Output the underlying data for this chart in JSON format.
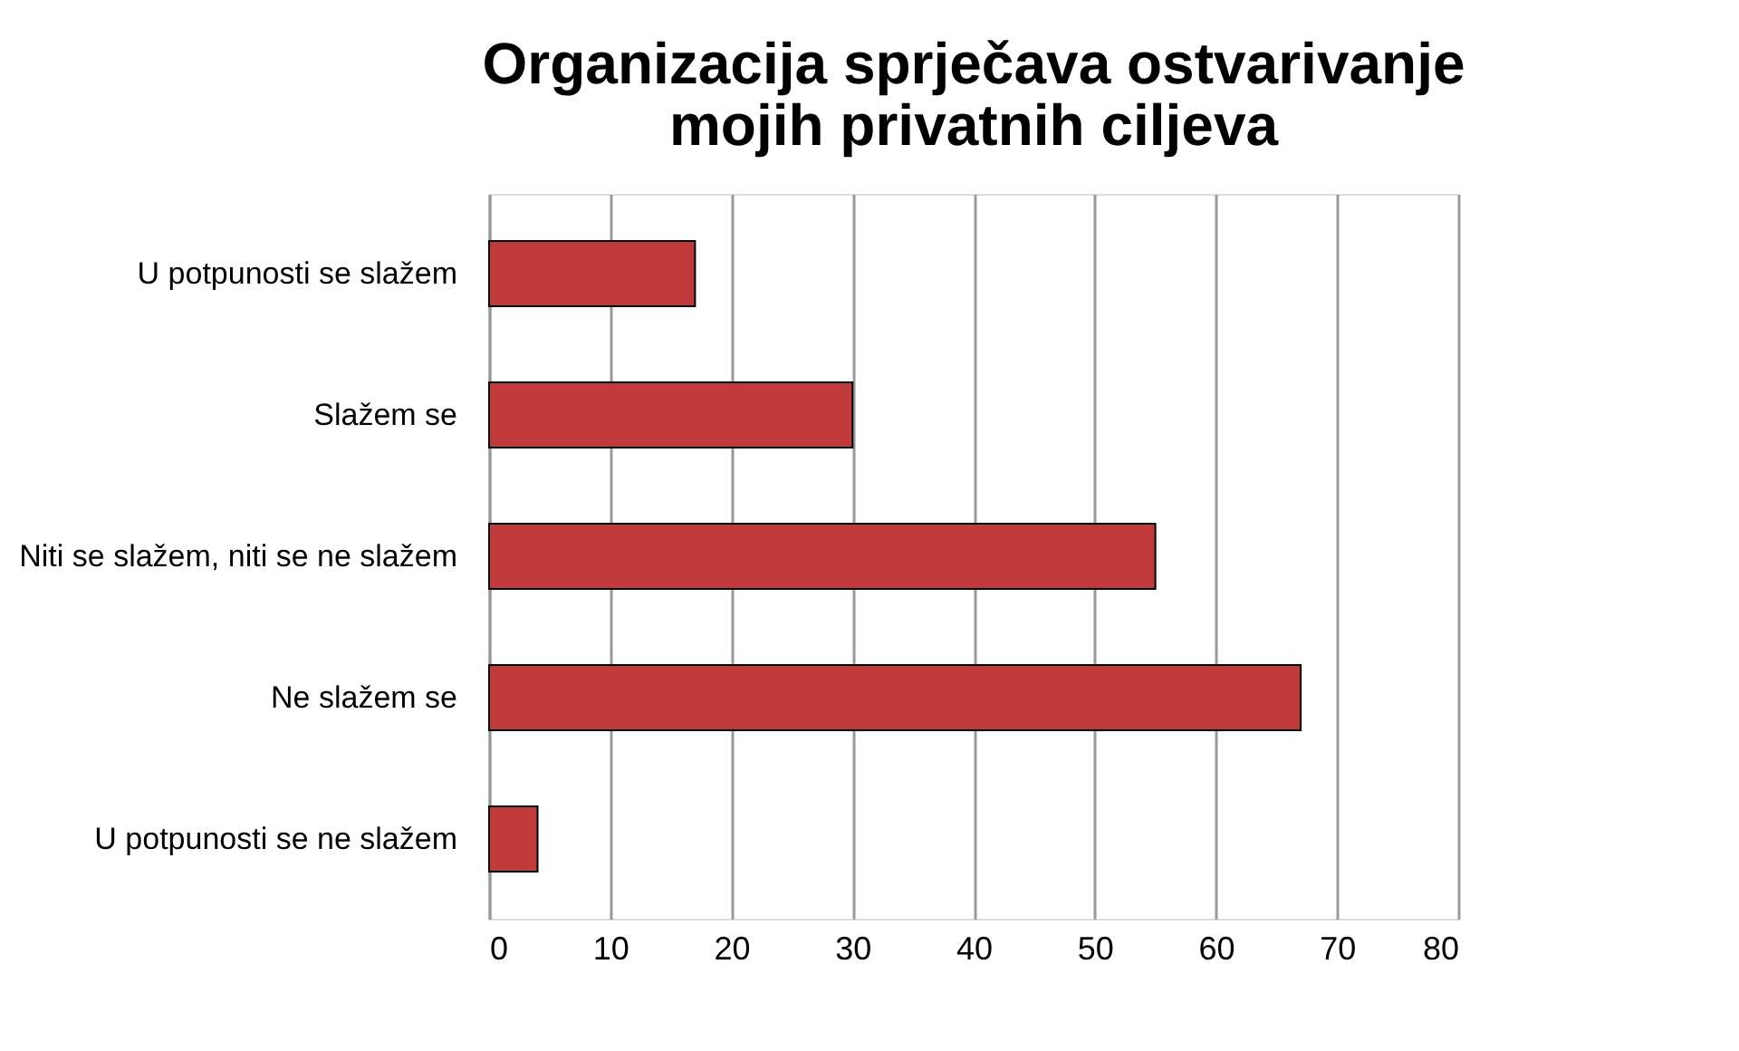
{
  "chart_data": {
    "type": "bar",
    "orientation": "horizontal",
    "title": [
      "Organizacija sprječava ostvarivanje",
      "mojih privatnih ciljeva"
    ],
    "categories": [
      "U potpunosti se slažem",
      "Slažem se",
      "Niti se slažem, niti se ne slažem",
      "Ne slažem se",
      "U potpunosti se ne slažem"
    ],
    "values": [
      17,
      30,
      55,
      67,
      4
    ],
    "color": "#c0393b",
    "xlim": [
      0,
      80
    ],
    "xticks": [
      0,
      10,
      20,
      30,
      40,
      50,
      60,
      70,
      80
    ],
    "grid": "x"
  }
}
